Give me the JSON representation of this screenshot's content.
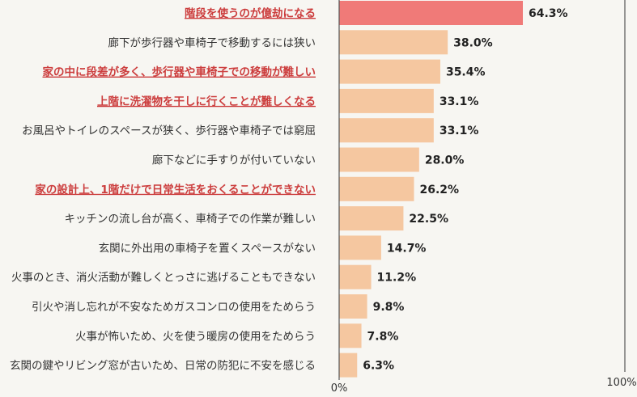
{
  "chart_data": {
    "type": "bar",
    "orientation": "horizontal",
    "categories": [
      "階段を使うのが億劫になる",
      "廊下が歩行器や車椅子で移動するには狭い",
      "家の中に段差が多く、歩行器や車椅子での移動が難しい",
      "上階に洗濯物を干しに行くことが難しくなる",
      "お風呂やトイレのスペースが狭く、歩行器や車椅子では窮屈",
      "廊下などに手すりが付いていない",
      "家の設計上、1階だけで日常生活をおくることができない",
      "キッチンの流し台が高く、車椅子での作業が難しい",
      "玄関に外出用の車椅子を置くスペースがない",
      "火事のとき、消火活動が難しくとっさに逃げることもできない",
      "引火や消し忘れが不安なためガスコンロの使用をためらう",
      "火事が怖いため、火を使う暖房の使用をためらう",
      "玄関の鍵やリビング窓が古いため、日常の防犯に不安を感じる"
    ],
    "values": [
      64.3,
      38.0,
      35.4,
      33.1,
      33.1,
      28.0,
      26.2,
      22.5,
      14.7,
      11.2,
      9.8,
      7.8,
      6.3
    ],
    "value_labels": [
      "64.3%",
      "38.0%",
      "35.4%",
      "33.1%",
      "33.1%",
      "28.0%",
      "26.2%",
      "22.5%",
      "14.7%",
      "11.2%",
      "9.8%",
      "7.8%",
      "6.3%"
    ],
    "highlighted": [
      true,
      false,
      true,
      true,
      false,
      false,
      true,
      false,
      false,
      false,
      false,
      false,
      false
    ],
    "top_bar_highlight": true,
    "xlim": [
      0,
      100
    ],
    "xtick_labels": {
      "min": "0%",
      "max": "100%"
    },
    "grid": false,
    "legend": "none",
    "colors": {
      "bar": "#f5c7a0",
      "bar_top": "#f07a78",
      "label_normal": "#333333",
      "label_highlight": "#cc3d3d",
      "value_text": "#222222",
      "axis_line": "#555555",
      "background": "#f7f6f2"
    }
  }
}
